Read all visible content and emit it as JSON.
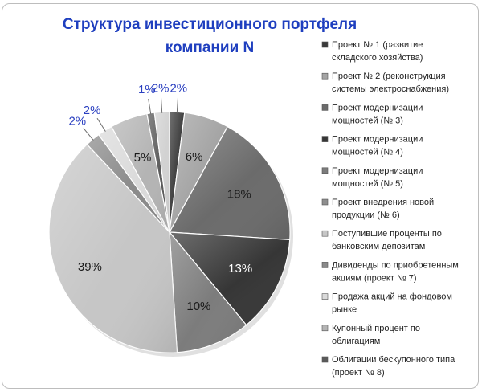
{
  "chart_data": {
    "type": "pie",
    "title": "Структура инвестиционного портфеля компании N",
    "title_lines": [
      "Структура инвестиционного портфеля",
      "компании N"
    ],
    "legend_position": "right",
    "slices": [
      {
        "label": "Проект № 1 (развитие складского хозяйства)",
        "legend_lines": [
          "Проект № 1 (развитие",
          "складского хозяйства)"
        ],
        "value": 2,
        "display": "2%",
        "color": "#3a3a3a"
      },
      {
        "label": "Проект № 2 (реконструкция системы электроснабжения)",
        "legend_lines": [
          "Проект № 2 (реконструкция",
          "системы электроснабжения)"
        ],
        "value": 6,
        "display": "6%",
        "color": "#a4a4a4"
      },
      {
        "label": "Проект модернизации мощностей (№ 3)",
        "legend_lines": [
          "Проект модернизации",
          "мощностей (№ 3)"
        ],
        "value": 18,
        "display": "18%",
        "color": "#6b6b6b"
      },
      {
        "label": "Проект модернизации мощностей (№ 4)",
        "legend_lines": [
          "Проект модернизации",
          "мощностей (№ 4)"
        ],
        "value": 13,
        "display": "13%",
        "color": "#363636"
      },
      {
        "label": "Проект модернизации мощностей (№ 5)",
        "legend_lines": [
          "Проект модернизации",
          "мощностей (№ 5)"
        ],
        "value": 10,
        "display": "10%",
        "color": "#7c7c7c"
      },
      {
        "label": "Проект внедрения новой продукции (№ 6)",
        "legend_lines": [
          "Проект внедрения новой",
          "продукции (№ 6)"
        ],
        "value": 0,
        "display": "",
        "color": "#8e8e8e"
      },
      {
        "label": "Поступившие проценты по банковским депозитам",
        "legend_lines": [
          "Поступившие проценты по",
          "банковским депозитам"
        ],
        "value": 39,
        "display": "39%",
        "color": "#c6c6c6"
      },
      {
        "label": "Дивиденды по приобретенным акциям (проект № 7)",
        "legend_lines": [
          "Дивиденды по приобретенным",
          "акциям (проект № 7)"
        ],
        "value": 2,
        "display": "2%",
        "color": "#8a8a8a"
      },
      {
        "label": "Продажа акций на фондовом рынке",
        "legend_lines": [
          "Продажа акций на фондовом",
          "рынке"
        ],
        "value": 2,
        "display": "2%",
        "color": "#dadada"
      },
      {
        "label": "Купонный процент по облигациям",
        "legend_lines": [
          "Купонный процент по",
          "облигациям"
        ],
        "value": 5,
        "display": "5%",
        "color": "#b4b4b4"
      },
      {
        "label": "Облигации бескупонного типа (проект № 8)",
        "legend_lines": [
          "Облигации бескупонного типа",
          "(проект № 8)"
        ],
        "value": 1,
        "display": "1%",
        "color": "#5a5a5a"
      },
      {
        "label": "",
        "legend_lines": [],
        "value": 2,
        "display": "2%",
        "color": "#d2d2d2"
      }
    ]
  }
}
